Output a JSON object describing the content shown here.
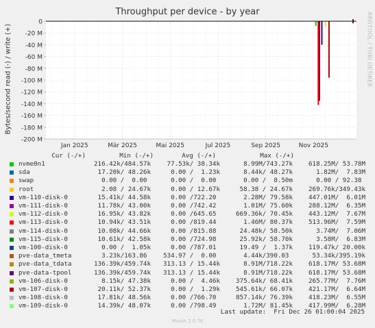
{
  "title": "Throughput per device - by year",
  "side_label": "RRDTOOL / TOBI OETIKER",
  "footer": "Munin 2.0.76",
  "last_update": "Last update:  Fri Dec 26 01:00:04 2025",
  "headers": {
    "cur": "Cur (-/+)",
    "min": "Min (-/+)",
    "avg": "Avg (-/+)",
    "max": "Max (-/+)"
  },
  "chart_data": {
    "type": "line",
    "title": "Throughput per device - by year",
    "ylabel": "Bytes/second read (-) / write (+)",
    "ylim": [
      -200,
      0
    ],
    "y_unit": "M",
    "y_ticks": [
      0,
      -20,
      -40,
      -60,
      -80,
      -100,
      -120,
      -140,
      -160,
      -180,
      -200
    ],
    "y_tick_labels": [
      "0",
      "-20 M",
      "-40 M",
      "-60 M",
      "-80 M",
      "-100 M",
      "-120 M",
      "-140 M",
      "-160 M",
      "-180 M",
      "-200 M"
    ],
    "x_tick_labels": [
      "Jan 2025",
      "Mär 2025",
      "Mai 2025",
      "Jul 2025",
      "Sep 2025",
      "Nov 2025"
    ],
    "x_tick_months": [
      1,
      3,
      5,
      7,
      9,
      11
    ],
    "x_range_months": [
      -0.2,
      12.8
    ],
    "grid": true,
    "series": [
      {
        "name": "nvme0n1",
        "color": "#00cc00",
        "cur": "216.42k/484.57k",
        "min": " 77.53k/ 38.34k",
        "avg": "  8.99M/743.27k",
        "max": "618.25M/ 53.78M"
      },
      {
        "name": "sda",
        "color": "#0066b3",
        "cur": " 17.20k/ 48.26k",
        "min": "  0.00 /  1.23k",
        "avg": "  8.44k/ 48.27k",
        "max": "  1.82M/  7.83M"
      },
      {
        "name": "swap",
        "color": "#ff8000",
        "cur": "  0.00 /  0.00 ",
        "min": "  0.00 /  0.00 ",
        "avg": "  0.00 /  8.50m",
        "max": "  0.00 / 92.38 "
      },
      {
        "name": "root",
        "color": "#ffcc00",
        "cur": "  2.08 / 24.67k",
        "min": "  0.00 / 12.67k",
        "avg": " 58.38 / 24.67k",
        "max": "269.76k/349.43k"
      },
      {
        "name": "vm-110-disk-0",
        "color": "#330099",
        "cur": " 15.41k/ 44.58k",
        "min": "  0.00 /722.20 ",
        "avg": "  2.28M/ 79.58k",
        "max": "447.01M/  6.01M"
      },
      {
        "name": "vm-111-disk-0",
        "color": "#990099",
        "cur": " 11.78k/ 43.00k",
        "min": "  0.00 /742.42 ",
        "avg": "  1.01M/ 75.60k",
        "max": "288.12M/  6.35M"
      },
      {
        "name": "vm-112-disk-0",
        "color": "#ccff00",
        "cur": " 16.95k/ 43.82k",
        "min": "  0.00 /645.65 ",
        "avg": "669.36k/ 70.45k",
        "max": "443.12M/  7.67M"
      },
      {
        "name": "vm-113-disk-0",
        "color": "#ff0000",
        "cur": " 10.94k/ 43.51k",
        "min": "  0.00 /819.44 ",
        "avg": "  1.46M/ 80.37k",
        "max": "513.96M/  7.59M"
      },
      {
        "name": "vm-114-disk-0",
        "color": "#808080",
        "cur": " 10.08k/ 44.66k",
        "min": "  0.00 /815.88 ",
        "avg": " 24.48k/ 58.50k",
        "max": "  3.74M/  7.06M"
      },
      {
        "name": "vm-115-disk-0",
        "color": "#008f00",
        "cur": " 10.61k/ 42.58k",
        "min": "  0.00 /724.98 ",
        "avg": " 25.92k/ 58.70k",
        "max": "  3.58M/  6.83M"
      },
      {
        "name": "vm-100-disk-0",
        "color": "#00487d",
        "cur": "  0.00 /  1.05k",
        "min": "  0.00 /787.01 ",
        "avg": " 19.49 /  1.37k",
        "max": "119.47k/ 20.00k"
      },
      {
        "name": "pve-data_tmeta",
        "color": "#b35a00",
        "cur": "  3.23k/163.86 ",
        "min": "534.97 /  0.00 ",
        "avg": "  4.44k/390.03 ",
        "max": " 53.34k/395.19k"
      },
      {
        "name": "pve-data_tdata",
        "color": "#b38f00",
        "cur": "136.39k/459.74k",
        "min": "313.13 / 15.44k",
        "avg": "  8.91M/718.22k",
        "max": "618.17M/ 53.68M"
      },
      {
        "name": "pve-data-tpool",
        "color": "#6b006b",
        "cur": "136.39k/459.74k",
        "min": "313.13 / 15.44k",
        "avg": "  8.91M/718.22k",
        "max": "618.17M/ 53.68M"
      },
      {
        "name": "vm-106-disk-0",
        "color": "#8fb300",
        "cur": "  8.15k/ 47.38k",
        "min": "  0.00 /  4.46k",
        "avg": "375.64k/ 68.41k",
        "max": "265.77M/  7.76M"
      },
      {
        "name": "vm-107-disk-0",
        "color": "#b30000",
        "cur": " 20.11k/ 52.37k",
        "min": "  0.00 /  1.29k",
        "avg": "545.61k/ 66.07k",
        "max": "421.17M/  6.64M"
      },
      {
        "name": "vm-108-disk-0",
        "color": "#bebebe",
        "cur": " 17.81k/ 48.56k",
        "min": "  0.00 /766.70 ",
        "avg": "857.14k/ 76.39k",
        "max": "418.23M/  6.55M"
      },
      {
        "name": "vm-109-disk-0",
        "color": "#80ff80",
        "cur": " 14.39k/ 48.07k",
        "min": "  0.00 /798.49 ",
        "avg": "  1.72M/ 81.45k",
        "max": "417.99M/  6.28M"
      }
    ],
    "visible_activity": [
      {
        "series": "vm-113-disk-0",
        "month": 11.2,
        "value": -142
      },
      {
        "series": "pve-data-tpool",
        "month": 11.25,
        "value": -135
      },
      {
        "series": "vm-110-disk-0",
        "month": 11.35,
        "value": -40
      },
      {
        "series": "nvme0n1",
        "month": 11.1,
        "value": -8
      },
      {
        "series": "vm-112-disk-0",
        "month": 11.5,
        "value": -10
      },
      {
        "series": "vm-107-disk-0",
        "month": 11.65,
        "value": -96
      }
    ]
  }
}
